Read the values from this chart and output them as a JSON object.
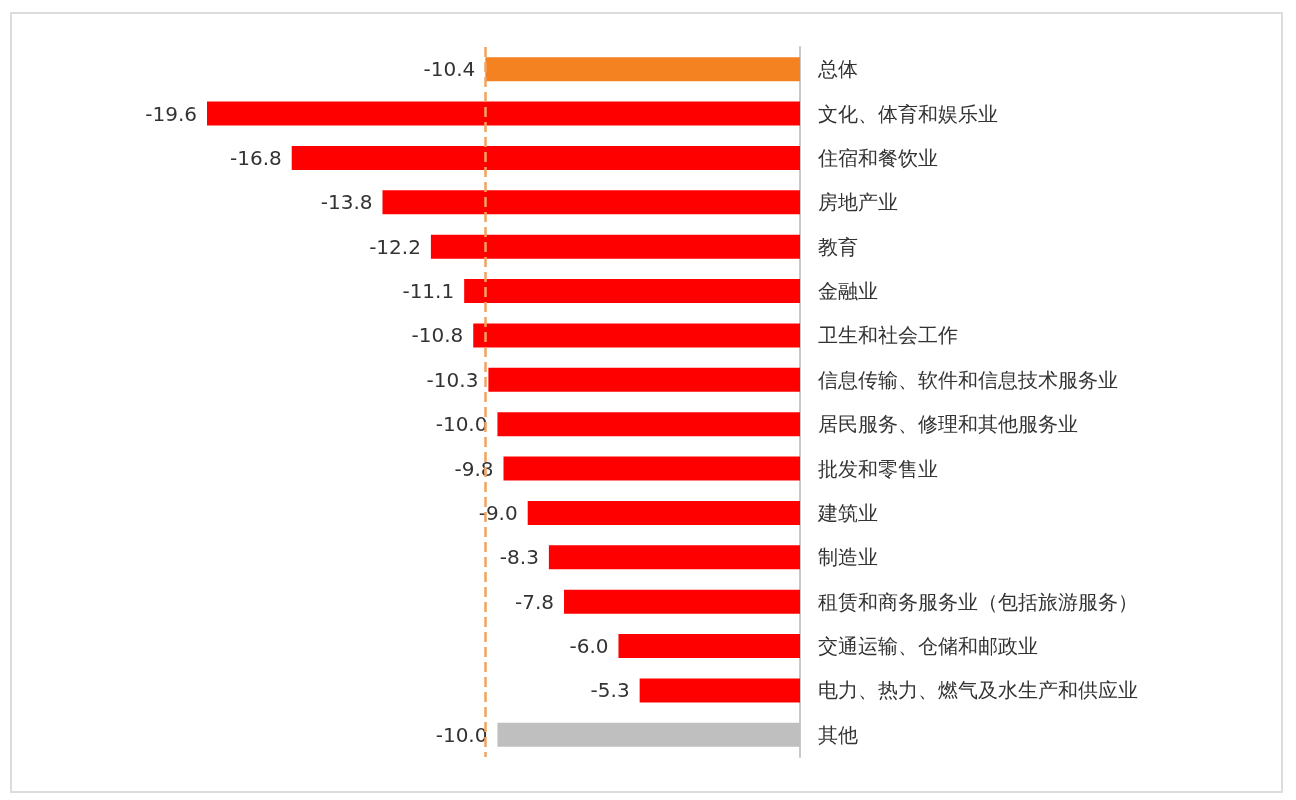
{
  "chart_data": {
    "type": "bar",
    "orientation": "horizontal",
    "categories": [
      "总体",
      "文化、体育和娱乐业",
      "住宿和餐饮业",
      "房地产业",
      "教育",
      "金融业",
      "卫生和社会工作",
      "信息传输、软件和信息技术服务业",
      "居民服务、修理和其他服务业",
      "批发和零售业",
      "建筑业",
      "制造业",
      "租赁和商务服务业（包括旅游服务）",
      "交通运输、仓储和邮政业",
      "电力、热力、燃气及水生产和供应业",
      "其他"
    ],
    "values": [
      -10.4,
      -19.6,
      -16.8,
      -13.8,
      -12.2,
      -11.1,
      -10.8,
      -10.3,
      -10.0,
      -9.8,
      -9.0,
      -8.3,
      -7.8,
      -6.0,
      -5.3,
      -10.0
    ],
    "value_labels": [
      "-10.4",
      "-19.6",
      "-16.8",
      "-13.8",
      "-12.2",
      "-11.1",
      "-10.8",
      "-10.3",
      "-10.0",
      "-9.8",
      "-9.0",
      "-8.3",
      "-7.8",
      "-6.0",
      "-5.3",
      "-10.0"
    ],
    "colors": [
      "#f58220",
      "#ff0000",
      "#ff0000",
      "#ff0000",
      "#ff0000",
      "#ff0000",
      "#ff0000",
      "#ff0000",
      "#ff0000",
      "#ff0000",
      "#ff0000",
      "#ff0000",
      "#ff0000",
      "#ff0000",
      "#ff0000",
      "#bfbfbf"
    ],
    "ref_lines": [
      {
        "axis": "x",
        "value": -10.4,
        "color": "#f4a35f",
        "line_style": "dashed"
      }
    ],
    "tick_labels": "y"
  }
}
